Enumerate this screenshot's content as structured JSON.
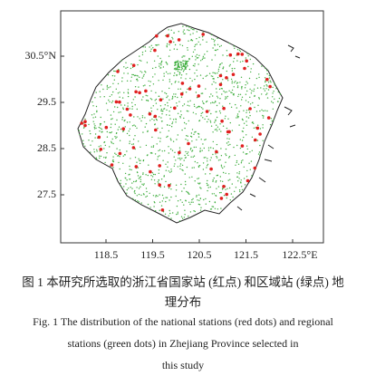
{
  "map": {
    "yticks": [
      "30.5°N",
      "29.5",
      "28.5",
      "27.5"
    ],
    "xticks": [
      "118.5",
      "119.5",
      "120.5",
      "121.5",
      "122.5°E"
    ]
  },
  "caption": {
    "zh": [
      "图 1 本研究所选取的浙江省国家站 (红点) 和区域站 (绿点) 地",
      "理分布"
    ],
    "en": [
      "Fig. 1 The distribution of the national stations (red dots) and regional",
      "stations (green dots) in Zhejiang Province selected in",
      "this study"
    ]
  }
}
